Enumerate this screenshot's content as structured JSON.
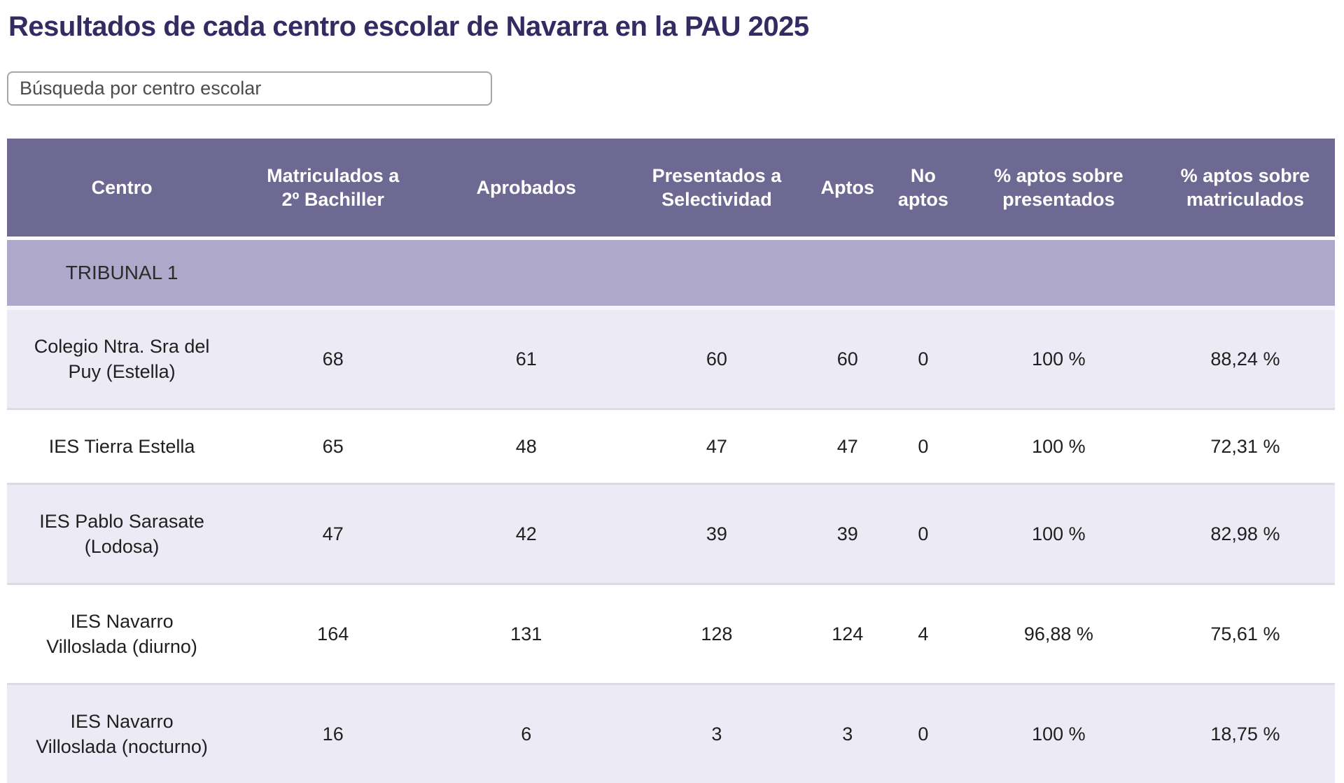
{
  "page": {
    "title": "Resultados de cada centro escolar de Navarra en la PAU 2025"
  },
  "search": {
    "placeholder": "Búsqueda por centro escolar",
    "value": ""
  },
  "table": {
    "columns": [
      "Centro",
      "Matriculados a\n2º Bachiller",
      "Aprobados",
      "Presentados a\nSelectividad",
      "Aptos",
      "No\naptos",
      "% aptos sobre\npresentados",
      "% aptos sobre\nmatriculados"
    ],
    "sections": [
      {
        "label": "TRIBUNAL 1",
        "rows": [
          {
            "centro": "Colegio Ntra. Sra del Puy (Estella)",
            "values": [
              "68",
              "61",
              "60",
              "60",
              "0",
              "100 %",
              "88,24 %"
            ]
          },
          {
            "centro": "IES Tierra Estella",
            "values": [
              "65",
              "48",
              "47",
              "47",
              "0",
              "100 %",
              "72,31 %"
            ]
          },
          {
            "centro": "IES Pablo Sarasate (Lodosa)",
            "values": [
              "47",
              "42",
              "39",
              "39",
              "0",
              "100 %",
              "82,98 %"
            ]
          },
          {
            "centro": "IES Navarro Villoslada (diurno)",
            "values": [
              "164",
              "131",
              "128",
              "124",
              "4",
              "96,88 %",
              "75,61 %"
            ]
          },
          {
            "centro": "IES Navarro Villoslada (nocturno)",
            "values": [
              "16",
              "6",
              "3",
              "3",
              "0",
              "100 %",
              "18,75 %"
            ]
          }
        ]
      }
    ]
  },
  "colors": {
    "title-color": "#332c62",
    "header-bg": "#6d6992",
    "header-text": "#ffffff",
    "section-bg": "#aea9cb",
    "row-light": "#ecebf5",
    "row-white": "#ffffff",
    "divider": "#dcdbe4",
    "cell-text": "#202020",
    "input-border": "#a6a6a6",
    "placeholder": "#4c4c4c"
  }
}
